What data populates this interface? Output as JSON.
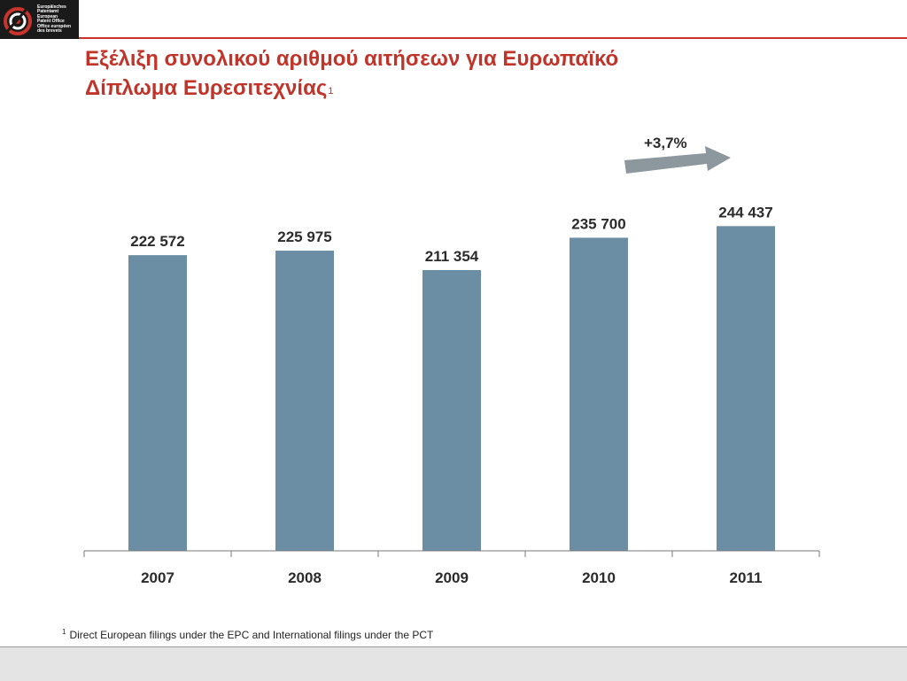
{
  "logo": {
    "lines": [
      "Europäisches",
      "Patentamt",
      "European",
      "Patent Office",
      "Office européen",
      "des brevets"
    ]
  },
  "title": {
    "line1": "Εξέλιξη συνολικού αριθμού αιτήσεων για Ευρωπαϊκό",
    "line2": "Δίπλωμα Ευρεσιτεχνίας",
    "footnote_mark": "1"
  },
  "annotation": {
    "growth": "+3,7%"
  },
  "footnote": {
    "mark": "1",
    "text": "Direct European filings under the EPC and International filings under the PCT"
  },
  "colors": {
    "bar": "#6b8ea5",
    "title": "#c0342a",
    "arrow": "#8c979e",
    "topline": "#c8332b"
  },
  "chart_data": {
    "type": "bar",
    "categories": [
      "2007",
      "2008",
      "2009",
      "2010",
      "2011"
    ],
    "values": [
      222572,
      225975,
      211354,
      235700,
      244437
    ],
    "value_labels": [
      "222 572",
      "225 975",
      "211 354",
      "235 700",
      "244 437"
    ],
    "ylim": [
      0,
      270000
    ],
    "grid": false,
    "legend": "none"
  }
}
